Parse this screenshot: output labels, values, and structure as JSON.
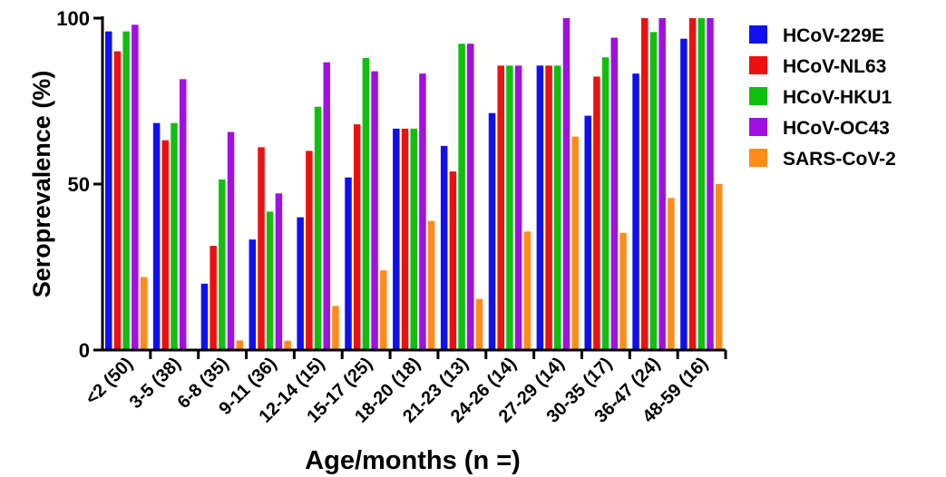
{
  "chart_data": {
    "type": "bar",
    "title": "",
    "xlabel": "Age/months (n =)",
    "ylabel": "Seroprevalence (%)",
    "ylim": [
      0,
      100
    ],
    "yticks": [
      "0",
      "50",
      "100"
    ],
    "grid": false,
    "legend_position": "top-right",
    "categories": [
      "<2 (50)",
      "3-5 (38)",
      "6-8 (35)",
      "9-11 (36)",
      "12-14 (15)",
      "15-17 (25)",
      "18-20 (18)",
      "21-23 (13)",
      "24-26 (14)",
      "27-29 (14)",
      "30-35 (17)",
      "36-47 (24)",
      "48-59 (16)"
    ],
    "series": [
      {
        "name": "HCoV-229E",
        "color": "#1010ee",
        "values": [
          96,
          68.4,
          20,
          33.3,
          40,
          52,
          66.7,
          61.5,
          71.4,
          85.7,
          70.6,
          83.3,
          93.8
        ]
      },
      {
        "name": "HCoV-NL63",
        "color": "#ee1010",
        "values": [
          90,
          63.2,
          31.4,
          61.1,
          60,
          68,
          66.7,
          53.8,
          85.7,
          85.7,
          82.4,
          100,
          100
        ]
      },
      {
        "name": "HCoV-HKU1",
        "color": "#10c010",
        "values": [
          96,
          68.4,
          51.4,
          41.7,
          73.3,
          88,
          66.7,
          92.3,
          85.7,
          85.7,
          88.2,
          95.8,
          100
        ]
      },
      {
        "name": "HCoV-OC43",
        "color": "#a010e0",
        "values": [
          98,
          81.6,
          65.7,
          47.2,
          86.7,
          84,
          83.3,
          92.3,
          85.7,
          100,
          94.1,
          100,
          100
        ]
      },
      {
        "name": "SARS-CoV-2",
        "color": "#ff8c1a",
        "values": [
          22,
          0,
          2.9,
          2.8,
          13.3,
          24,
          38.9,
          15.4,
          35.7,
          64.3,
          35.3,
          45.8,
          50
        ]
      }
    ]
  }
}
